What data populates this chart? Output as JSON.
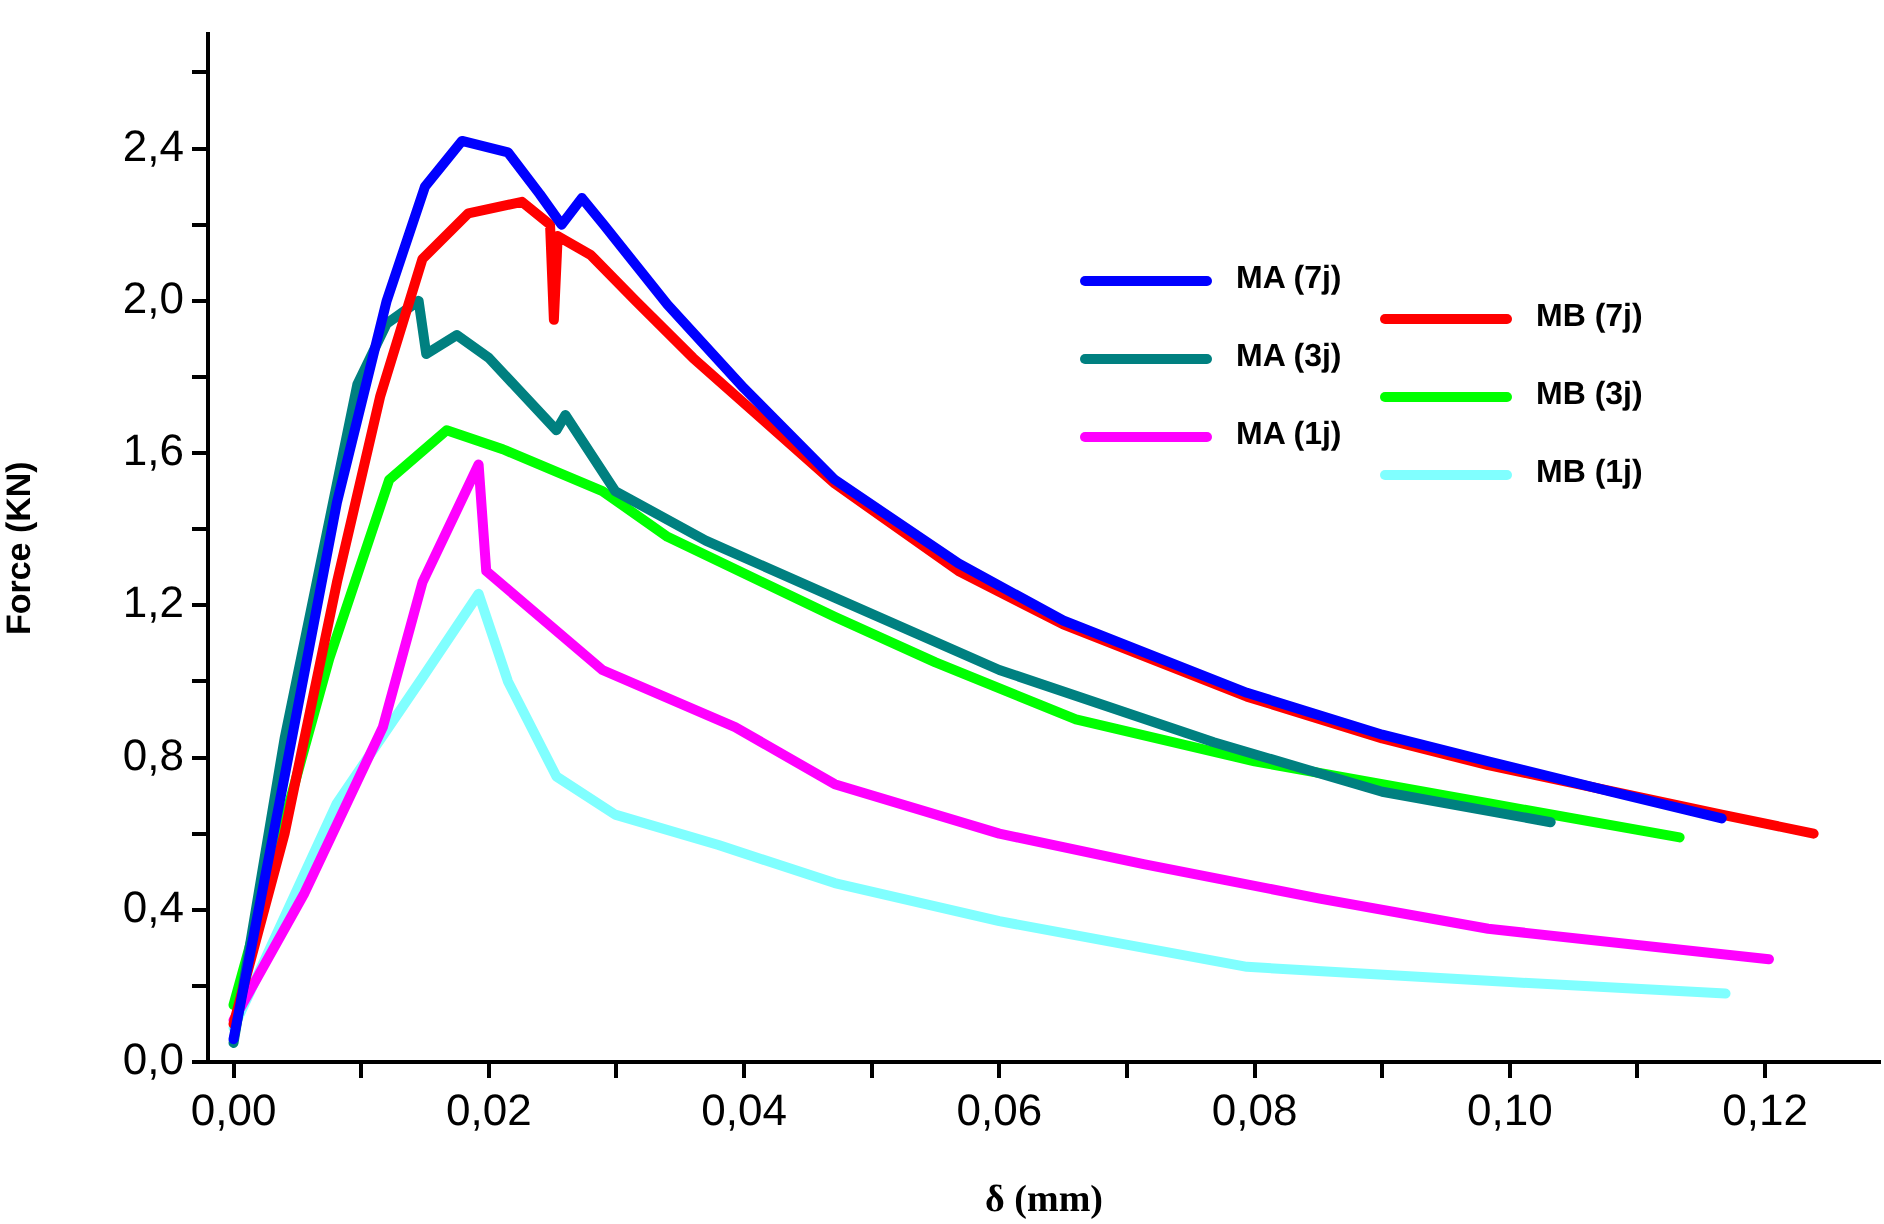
{
  "chart_data": {
    "type": "line",
    "xlabel": "δ (mm)",
    "ylabel": "Force (KN)",
    "xlim": [
      -0.002,
      0.129
    ],
    "xticks": [
      {
        "value": 0,
        "label": "0,00"
      },
      {
        "value": 0.01,
        "label": null
      },
      {
        "value": 0.02,
        "label": "0,02"
      },
      {
        "value": 0.03,
        "label": null
      },
      {
        "value": 0.04,
        "label": "0,04"
      },
      {
        "value": 0.05,
        "label": null
      },
      {
        "value": 0.06,
        "label": "0,06"
      },
      {
        "value": 0.07,
        "label": null
      },
      {
        "value": 0.08,
        "label": "0,08"
      },
      {
        "value": 0.09,
        "label": null
      },
      {
        "value": 0.1,
        "label": "0,10"
      },
      {
        "value": 0.11,
        "label": null
      },
      {
        "value": 0.12,
        "label": "0,12"
      }
    ],
    "ylim": [
      0,
      2.7
    ],
    "yticks": [
      {
        "value": 0,
        "label": "0,0"
      },
      {
        "value": 0.2,
        "label": null
      },
      {
        "value": 0.4,
        "label": "0,4"
      },
      {
        "value": 0.6,
        "label": null
      },
      {
        "value": 0.8,
        "label": "0,8"
      },
      {
        "value": 1.0,
        "label": null
      },
      {
        "value": 1.2,
        "label": "1,2"
      },
      {
        "value": 1.4,
        "label": null
      },
      {
        "value": 1.6,
        "label": "1,6"
      },
      {
        "value": 1.8,
        "label": null
      },
      {
        "value": 2.0,
        "label": "2,0"
      },
      {
        "value": 2.2,
        "label": null
      },
      {
        "value": 2.4,
        "label": "2,4"
      },
      {
        "value": 2.6,
        "label": null
      }
    ],
    "grid": false,
    "legend": "top right",
    "marker": "none",
    "line_style": "solid",
    "series": [
      {
        "name": "MA (7j)",
        "color": "#0000ff",
        "x": [
          0,
          0.004,
          0.0081,
          0.012,
          0.015,
          0.0179,
          0.0215,
          0.024,
          0.0257,
          0.0273,
          0.029,
          0.034,
          0.04,
          0.0471,
          0.0568,
          0.065,
          0.0794,
          0.09,
          0.0983,
          0.108,
          0.1166
        ],
        "values": [
          0.06,
          0.75,
          1.47,
          2.0,
          2.3,
          2.42,
          2.39,
          2.28,
          2.2,
          2.27,
          2.2,
          1.99,
          1.77,
          1.53,
          1.31,
          1.16,
          0.97,
          0.86,
          0.79,
          0.71,
          0.64
        ]
      },
      {
        "name": "MB (7j)",
        "color": "#ff0000",
        "x": [
          0,
          0.004,
          0.0081,
          0.0115,
          0.0148,
          0.0184,
          0.0226,
          0.0248,
          0.0251,
          0.0254,
          0.028,
          0.0315,
          0.036,
          0.0471,
          0.0568,
          0.065,
          0.0794,
          0.09,
          0.0983,
          0.1166,
          0.1238
        ],
        "values": [
          0.1,
          0.6,
          1.26,
          1.75,
          2.11,
          2.23,
          2.26,
          2.2,
          1.95,
          2.17,
          2.12,
          2.0,
          1.85,
          1.52,
          1.29,
          1.15,
          0.96,
          0.85,
          0.78,
          0.65,
          0.6
        ]
      },
      {
        "name": "MA (3j)",
        "color": "#008080",
        "x": [
          0,
          0.004,
          0.0097,
          0.012,
          0.0145,
          0.0151,
          0.0175,
          0.02,
          0.0253,
          0.026,
          0.0299,
          0.037,
          0.0471,
          0.06,
          0.0768,
          0.09,
          0.1032
        ],
        "values": [
          0.05,
          0.85,
          1.78,
          1.94,
          2.0,
          1.86,
          1.91,
          1.85,
          1.66,
          1.7,
          1.5,
          1.37,
          1.22,
          1.03,
          0.84,
          0.71,
          0.63
        ]
      },
      {
        "name": "MB (3j)",
        "color": "#00ff00",
        "x": [
          0,
          0.0075,
          0.0122,
          0.0167,
          0.0211,
          0.0289,
          0.034,
          0.0471,
          0.055,
          0.066,
          0.08,
          0.0983,
          0.1133
        ],
        "values": [
          0.15,
          1.06,
          1.53,
          1.66,
          1.61,
          1.5,
          1.38,
          1.17,
          1.05,
          0.9,
          0.79,
          0.68,
          0.59
        ]
      },
      {
        "name": "MA (1j)",
        "color": "#ff00ff",
        "x": [
          0,
          0.0055,
          0.0117,
          0.0148,
          0.0192,
          0.0198,
          0.0289,
          0.0393,
          0.0471,
          0.06,
          0.0713,
          0.085,
          0.0983,
          0.1203
        ],
        "values": [
          0.11,
          0.44,
          0.88,
          1.26,
          1.57,
          1.29,
          1.03,
          0.88,
          0.73,
          0.6,
          0.52,
          0.43,
          0.35,
          0.27
        ]
      },
      {
        "name": "MB (1j)",
        "color": "#80ffff",
        "x": [
          0,
          0.0081,
          0.0148,
          0.0192,
          0.0215,
          0.0253,
          0.0299,
          0.038,
          0.0471,
          0.06,
          0.0794,
          0.1,
          0.1169
        ],
        "values": [
          0.09,
          0.68,
          1.01,
          1.23,
          1.0,
          0.75,
          0.65,
          0.57,
          0.47,
          0.37,
          0.25,
          0.21,
          0.18
        ]
      }
    ]
  }
}
